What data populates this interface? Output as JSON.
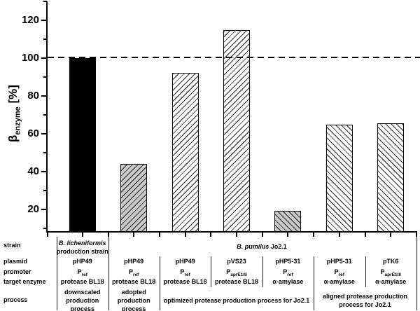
{
  "chart_data": {
    "type": "bar",
    "title": "",
    "ylabel": {
      "base": "β",
      "sub": "enzyme",
      "unit": " [%]"
    },
    "ylabel_text": "β_enzyme [%]",
    "xlabel": "",
    "ylim": [
      8,
      130
    ],
    "yticks_major": [
      20,
      40,
      60,
      80,
      100,
      120
    ],
    "yticks_minor": [
      10,
      30,
      50,
      70,
      90,
      110,
      130
    ],
    "reference_line": 100,
    "grid": false,
    "legend": false,
    "categories": [
      "pHP49",
      "pHP49",
      "pHP49",
      "pVS23",
      "pHP5-31",
      "pHP5-31",
      "pTK6"
    ],
    "values": [
      100,
      44,
      92,
      114.5,
      19,
      64.5,
      65.5
    ],
    "bar_styles": [
      {
        "fill": "#000000",
        "hatch": "none"
      },
      {
        "fill": "#c9c9c9",
        "hatch": "forward"
      },
      {
        "fill": "#ffffff",
        "hatch": "forward"
      },
      {
        "fill": "#ffffff",
        "hatch": "forward"
      },
      {
        "fill": "#c9c9c9",
        "hatch": "backward"
      },
      {
        "fill": "#ffffff",
        "hatch": "backward"
      },
      {
        "fill": "#ffffff",
        "hatch": "backward"
      }
    ]
  },
  "table": {
    "row_labels": [
      "strain",
      "plasmid",
      "promoter",
      "target enzyme",
      "process"
    ],
    "strain": {
      "col1_line1": "B. licheniformis",
      "col1_line2": "production strain",
      "group_italic": "B. pumilus",
      "group_rest": " Jo2.1"
    },
    "plasmids": [
      "pHP49",
      "pHP49",
      "pHP49",
      "pVS23",
      "pHP5-31",
      "pHP5-31",
      "pTK6"
    ],
    "promoters": [
      {
        "base": "P",
        "sub": "ref"
      },
      {
        "base": "P",
        "sub": "ref"
      },
      {
        "base": "P",
        "sub": "ref"
      },
      {
        "base": "P",
        "sub": "aprE1III"
      },
      {
        "base": "P",
        "sub": "ref"
      },
      {
        "base": "P",
        "sub": "ref"
      },
      {
        "base": "P",
        "sub": "aprE1III"
      }
    ],
    "target_enzymes": [
      "protease BL18",
      "protease BL18",
      "protease BL18",
      "protease BL18",
      "α-amylase",
      "α-amylase",
      "α-amylase"
    ],
    "processes": [
      {
        "start": 0,
        "end": 0,
        "lines": [
          "downscaled",
          "production",
          "process"
        ]
      },
      {
        "start": 1,
        "end": 1,
        "lines": [
          "adopted",
          "production",
          "process"
        ]
      },
      {
        "start": 2,
        "end": 4,
        "lines": [
          "optimized protease production process for Jo2.1"
        ]
      },
      {
        "start": 5,
        "end": 6,
        "lines": [
          "aligned protease production",
          "process for Jo2.1"
        ]
      }
    ]
  },
  "colors": {
    "bar_black": "#000000",
    "bar_gray": "#c9c9c9",
    "hatch_line": "#000000",
    "axis": "#000000",
    "background": "#ffffff"
  }
}
